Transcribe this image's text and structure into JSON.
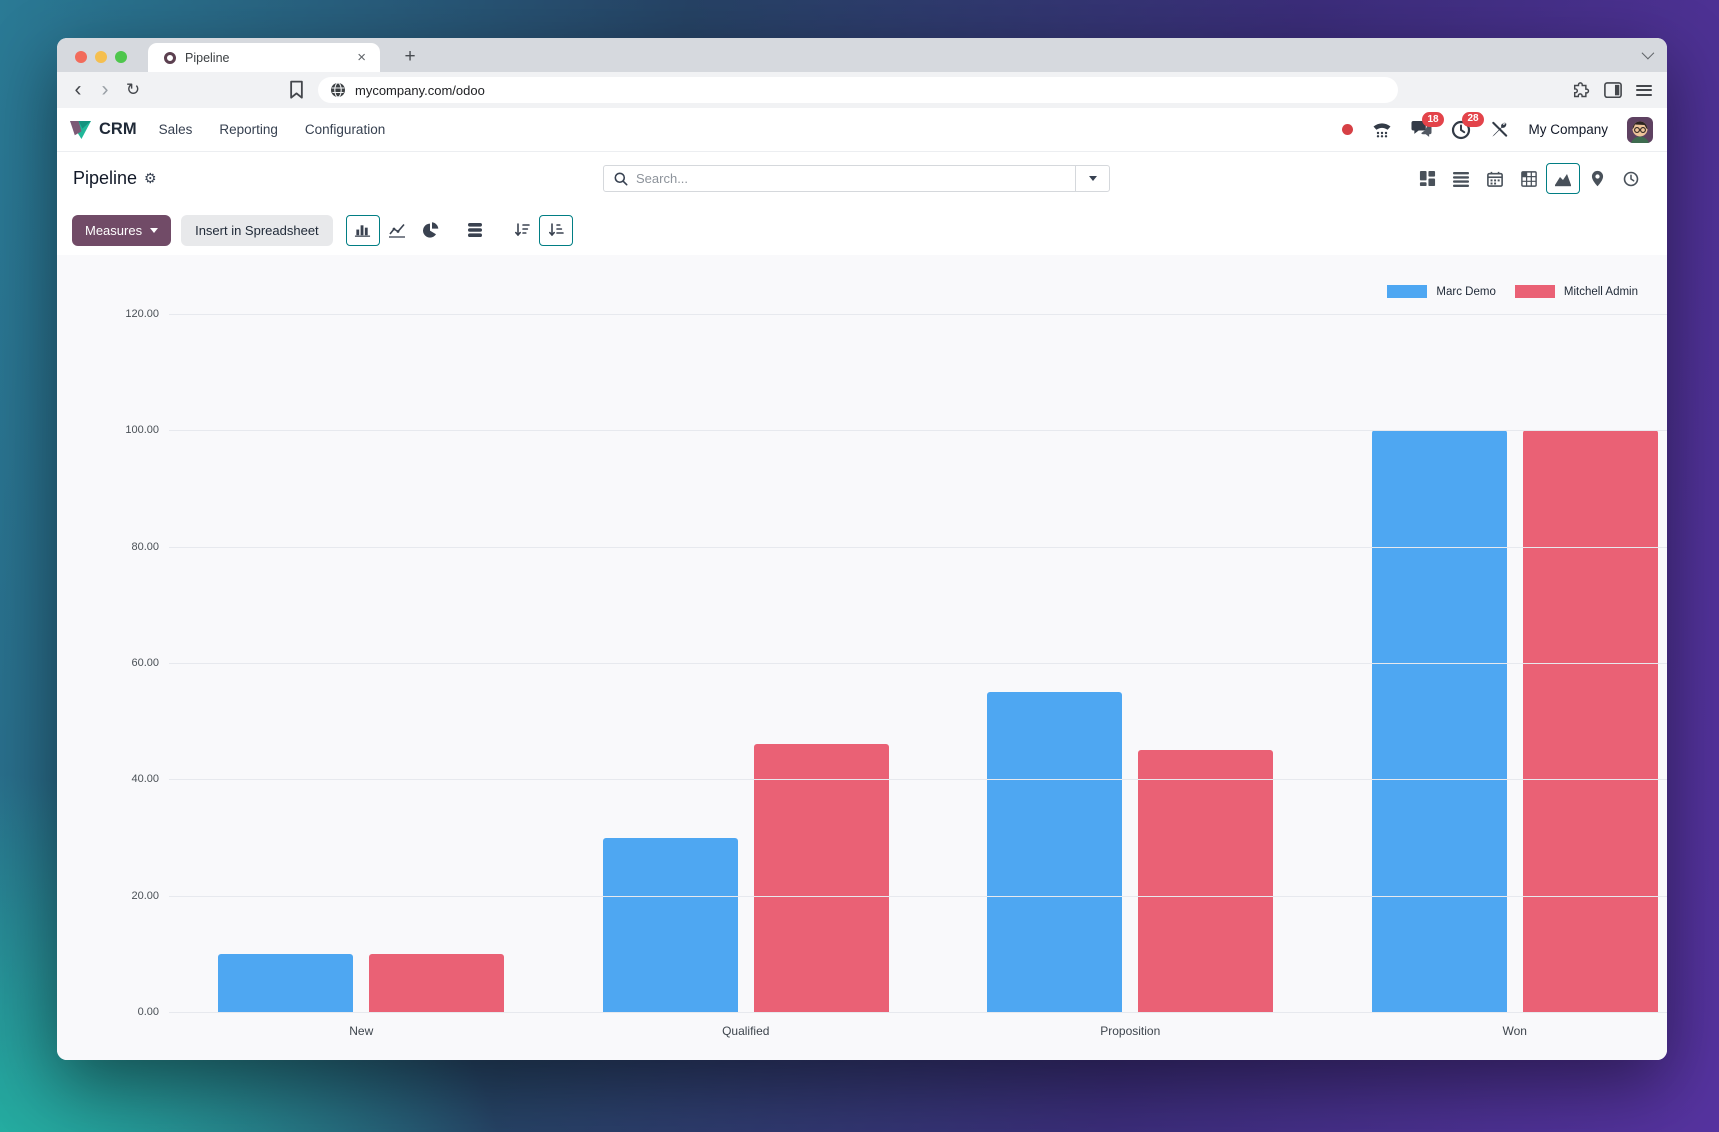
{
  "browser": {
    "tab_title": "Pipeline",
    "url": "mycompany.com/odoo",
    "back_glyph": "‹",
    "forward_glyph": "›",
    "reload_glyph": "↻",
    "newtab_glyph": "+",
    "tab_close_glyph": "×"
  },
  "nav": {
    "app_name": "CRM",
    "menus": [
      {
        "label": "Sales"
      },
      {
        "label": "Reporting"
      },
      {
        "label": "Configuration"
      }
    ],
    "systray": {
      "chat_badge": "18",
      "activity_badge": "28",
      "company": "My Company"
    }
  },
  "control_panel": {
    "title": "Pipeline",
    "gear_glyph": "⚙",
    "search_placeholder": "Search...",
    "view_switcher_active": "graph"
  },
  "toolbar": {
    "measures_label": "Measures",
    "insert_label": "Insert in Spreadsheet",
    "active_chart_type": "bar",
    "active_sort": "ascending"
  },
  "chart_data": {
    "type": "bar",
    "title": "",
    "categories": [
      "New",
      "Qualified",
      "Proposition",
      "Won"
    ],
    "series": [
      {
        "name": "Marc Demo",
        "color": "#4EA7F2",
        "values": [
          10,
          30,
          55,
          100
        ]
      },
      {
        "name": "Mitchell Admin",
        "color": "#EA6175",
        "values": [
          10,
          46,
          45,
          100
        ]
      }
    ],
    "xlabel": "",
    "ylabel": "",
    "ylim": [
      0,
      120
    ],
    "ytick_step": 20,
    "ytick_labels": [
      "0.00",
      "20.00",
      "40.00",
      "60.00",
      "80.00",
      "100.00",
      "120.00"
    ],
    "grid": true,
    "legend_position": "top-right"
  }
}
